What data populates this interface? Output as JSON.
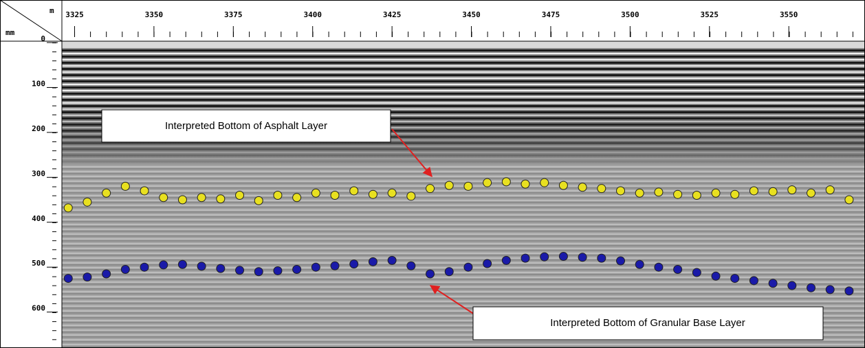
{
  "chart_data": {
    "type": "scatter",
    "x_label": "m",
    "y_label": "mm",
    "xlim": [
      3321,
      3574
    ],
    "ylim": [
      0,
      680
    ],
    "y_reversed": true,
    "xticks": [
      3325,
      3350,
      3375,
      3400,
      3425,
      3450,
      3475,
      3500,
      3525,
      3550
    ],
    "yticks": [
      0,
      100,
      200,
      300,
      400,
      500,
      600
    ],
    "series": [
      {
        "name": "Interpreted Bottom of Asphalt Layer",
        "color": "#e8e020",
        "x": [
          3323,
          3329,
          3335,
          3341,
          3347,
          3353,
          3359,
          3365,
          3371,
          3377,
          3383,
          3389,
          3395,
          3401,
          3407,
          3413,
          3419,
          3425,
          3431,
          3437,
          3443,
          3449,
          3455,
          3461,
          3467,
          3473,
          3479,
          3485,
          3491,
          3497,
          3503,
          3509,
          3515,
          3521,
          3527,
          3533,
          3539,
          3545,
          3551,
          3557,
          3563,
          3569
        ],
        "values": [
          368,
          355,
          335,
          320,
          330,
          345,
          350,
          345,
          348,
          340,
          352,
          340,
          345,
          335,
          340,
          330,
          338,
          335,
          342,
          325,
          318,
          320,
          312,
          310,
          315,
          312,
          318,
          322,
          325,
          330,
          335,
          333,
          338,
          340,
          335,
          338,
          330,
          332,
          328,
          335,
          328,
          350
        ]
      },
      {
        "name": "Interpreted Bottom of Granular Base Layer",
        "color": "#1a1aa8",
        "x": [
          3323,
          3329,
          3335,
          3341,
          3347,
          3353,
          3359,
          3365,
          3371,
          3377,
          3383,
          3389,
          3395,
          3401,
          3407,
          3413,
          3419,
          3425,
          3431,
          3437,
          3443,
          3449,
          3455,
          3461,
          3467,
          3473,
          3479,
          3485,
          3491,
          3497,
          3503,
          3509,
          3515,
          3521,
          3527,
          3533,
          3539,
          3545,
          3551,
          3557,
          3563,
          3569
        ],
        "values": [
          525,
          522,
          515,
          505,
          500,
          495,
          494,
          498,
          503,
          507,
          510,
          508,
          505,
          500,
          497,
          493,
          488,
          485,
          497,
          515,
          510,
          500,
          492,
          485,
          480,
          477,
          476,
          478,
          480,
          486,
          494,
          500,
          505,
          512,
          520,
          525,
          530,
          536,
          541,
          546,
          550,
          553
        ]
      }
    ]
  }
}
